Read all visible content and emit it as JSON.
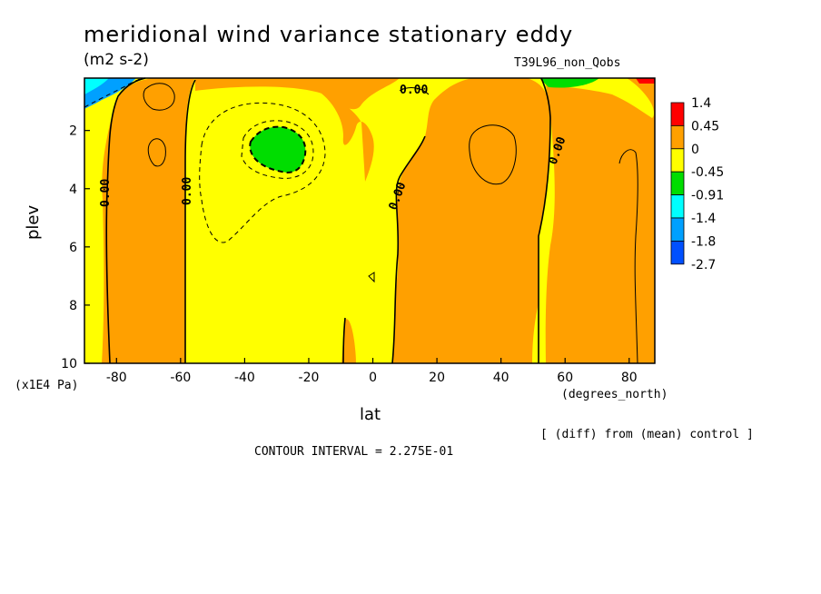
{
  "header": {
    "title": "meridional wind variance  stationary eddy",
    "units": "(m2 s-2)",
    "experiment": "T39L96_non_Qobs"
  },
  "axes": {
    "ylabel": "plev",
    "yunit": "(x1E4 Pa)",
    "xlabel": "lat",
    "xunit": "(degrees_north)"
  },
  "footer": {
    "diff_note": "[ (diff) from (mean) control ]",
    "contour_interval": "CONTOUR INTERVAL = 2.275E-01"
  },
  "chart_data": {
    "type": "contour",
    "title": "meridional wind variance  stationary eddy",
    "xlabel": "lat",
    "ylabel": "plev",
    "xlim": [
      -90,
      88
    ],
    "ylim": [
      10,
      0.2
    ],
    "xticks": [
      -80,
      -60,
      -40,
      -20,
      0,
      20,
      40,
      60,
      80
    ],
    "yticks": [
      2,
      4,
      6,
      8,
      10
    ],
    "contour_labels": [
      "0.00",
      "0.00",
      "0.00",
      "0.00",
      "0.00"
    ],
    "colorbar": {
      "levels": [
        "1.4",
        "0.45",
        "0",
        "-0.45",
        "-0.91",
        "-1.4",
        "-1.8",
        "-2.7"
      ],
      "colors": [
        "#ff0000",
        "#ffa000",
        "#ffff00",
        "#00dd00",
        "#00ffff",
        "#00a0ff",
        "#0050ff"
      ]
    },
    "fill_colors": {
      "positive": "#ffa000",
      "near_zero_negative": "#ffff00",
      "negative": "#00dd00",
      "strong_negative": "#00a0ff",
      "max": "#ff0000"
    }
  }
}
